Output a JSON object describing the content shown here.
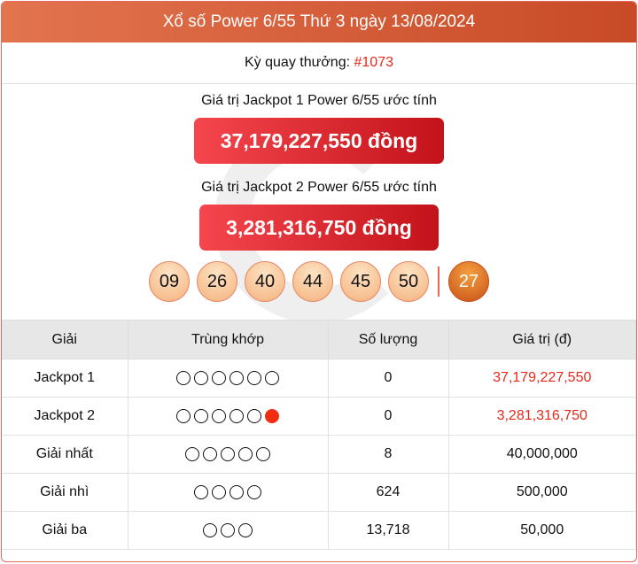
{
  "header": {
    "title": "Xổ số Power 6/55 Thứ 3 ngày 13/08/2024"
  },
  "draw": {
    "label": "Kỳ quay thưởng:",
    "number": "#1073"
  },
  "jackpot1": {
    "label": "Giá trị Jackpot 1 Power 6/55 ước tính",
    "value": "37,179,227,550 đồng"
  },
  "jackpot2": {
    "label": "Giá trị Jackpot 2 Power 6/55 ước tính",
    "value": "3,281,316,750 đồng"
  },
  "balls": [
    "09",
    "26",
    "40",
    "44",
    "45",
    "50"
  ],
  "power_ball": "27",
  "colors": {
    "accent": "#e8281b",
    "header": "#d65f3a"
  },
  "table": {
    "headers": [
      "Giải",
      "Trùng khớp",
      "Số lượng",
      "Giá trị (đ)"
    ],
    "rows": [
      {
        "prize": "Jackpot 1",
        "match": 6,
        "power": false,
        "count": "0",
        "value": "37,179,227,550",
        "highlight": true
      },
      {
        "prize": "Jackpot 2",
        "match": 5,
        "power": true,
        "count": "0",
        "value": "3,281,316,750",
        "highlight": true
      },
      {
        "prize": "Giải nhất",
        "match": 5,
        "power": false,
        "count": "8",
        "value": "40,000,000",
        "highlight": false
      },
      {
        "prize": "Giải nhì",
        "match": 4,
        "power": false,
        "count": "624",
        "value": "500,000",
        "highlight": false
      },
      {
        "prize": "Giải ba",
        "match": 3,
        "power": false,
        "count": "13,718",
        "value": "50,000",
        "highlight": false
      }
    ]
  }
}
